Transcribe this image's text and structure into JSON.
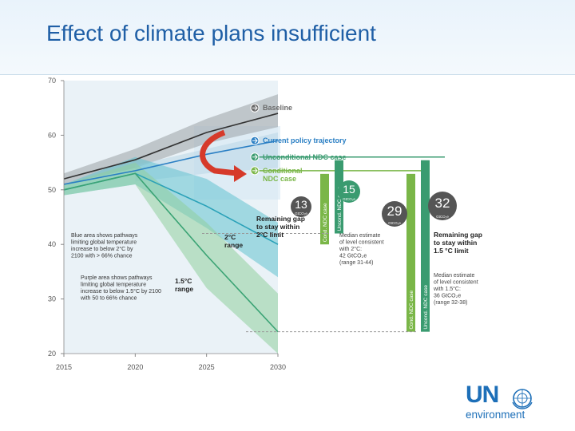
{
  "slide": {
    "title": "Effect of climate plans insufficient"
  },
  "logo": {
    "text_un": "UN",
    "text_env": "environment",
    "color": "#1d6fb8",
    "emblem_icon": "un-emblem-icon"
  },
  "chart_data": {
    "type": "line",
    "xlim": [
      2015,
      2030
    ],
    "ylim": [
      20,
      70
    ],
    "x_ticks": [
      2015,
      2020,
      2025,
      2030
    ],
    "y_ticks": [
      20,
      30,
      40,
      50,
      60,
      70
    ],
    "grid": false,
    "lines": [
      {
        "id": "baseline",
        "x": [
          2015,
          2020,
          2025,
          2030
        ],
        "y": [
          52,
          55.5,
          60.5,
          64
        ],
        "color": "#333333"
      },
      {
        "id": "current",
        "x": [
          2015,
          2020,
          2025,
          2030
        ],
        "y": [
          51,
          53.5,
          56.5,
          59
        ],
        "color": "#2a7fc4"
      },
      {
        "id": "two-c",
        "x": [
          2015,
          2020,
          2025,
          2030
        ],
        "y": [
          50,
          53,
          47,
          40
        ],
        "color": "#2aa1b8"
      },
      {
        "id": "onefive-c",
        "x": [
          2015,
          2020,
          2025,
          2030
        ],
        "y": [
          50,
          53,
          38,
          24
        ],
        "color": "#3aa374"
      }
    ],
    "bands": [
      {
        "id": "baseline-band",
        "x": [
          2015,
          2020,
          2025,
          2030
        ],
        "low": [
          51,
          54,
          58.5,
          61.5
        ],
        "high": [
          53,
          57.5,
          63,
          67.5
        ],
        "color": "#9aa3a6"
      },
      {
        "id": "current-band",
        "x": [
          2020,
          2025,
          2030
        ],
        "low": [
          51.5,
          53,
          54
        ],
        "high": [
          54.5,
          57.5,
          60.5
        ],
        "color": "#b9d7e6"
      },
      {
        "id": "two-c-band",
        "x": [
          2015,
          2020,
          2025,
          2030
        ],
        "low": [
          49,
          51,
          43,
          34
        ],
        "high": [
          51,
          56,
          52,
          44
        ],
        "color": "#63c3cf"
      },
      {
        "id": "onefive-c-band",
        "x": [
          2015,
          2020,
          2025,
          2030
        ],
        "low": [
          49,
          51,
          32,
          20
        ],
        "high": [
          51,
          55,
          44,
          31
        ],
        "color": "#8fcf9f"
      }
    ],
    "scenarios": [
      {
        "id": "baseline",
        "label": "Baseline",
        "value": 65,
        "color": "#6b6b6b"
      },
      {
        "id": "current",
        "label": "Current policy trajectory",
        "value": 59,
        "color": "#2a7fc4"
      },
      {
        "id": "uncond",
        "label": "Unconditional NDC case",
        "value": 56,
        "color": "#3a9b70"
      },
      {
        "id": "cond",
        "label": "Conditional",
        "label2": "NDC case",
        "value": 53.5,
        "color": "#7ab648"
      }
    ],
    "ndc_bar_labels": {
      "cond": "Cond. NDC case",
      "uncond": "Uncond. NDC case"
    },
    "gaps": [
      {
        "id": "gap-2c-cond",
        "value": "13",
        "unit": "GtCO₂e",
        "color": "#555555"
      },
      {
        "id": "gap-2c-uncond",
        "value": "15",
        "unit": "GtCO₂e",
        "color": "#3a9b70"
      },
      {
        "id": "gap-15c-cond",
        "value": "29",
        "unit": "GtCO₂e",
        "color": "#555555"
      },
      {
        "id": "gap-15c-uncond",
        "value": "32",
        "unit": "GtCO₂e",
        "color": "#555555"
      }
    ],
    "annotations": {
      "gap_2c": [
        "Remaining gap",
        "to stay within",
        "2°C limit"
      ],
      "gap_15c": [
        "Remaining gap",
        "to stay within",
        "1.5 °C limit"
      ],
      "median_2c": [
        "Median estimate",
        "of level consistent",
        "with 2°C:",
        "42 GtCO₂e",
        "(range 31-44)"
      ],
      "median_15c": [
        "Median estimate",
        "of level consistent",
        "with 1.5°C:",
        "36 GtCO₂e",
        "(range 32-38)"
      ],
      "range_2c": [
        "2°C",
        "range"
      ],
      "range_15c": [
        "1.5°C",
        "range"
      ],
      "blue_note": [
        "Blue area shows pathways",
        "limiting global temperature",
        "increase to below 2°C by",
        "2100 with > 66% chance"
      ],
      "purple_note": [
        "Purple area shows pathways",
        "limiting global temperature",
        "increase to below 1.5°C by 2100",
        "with 50 to 66% chance"
      ]
    }
  }
}
